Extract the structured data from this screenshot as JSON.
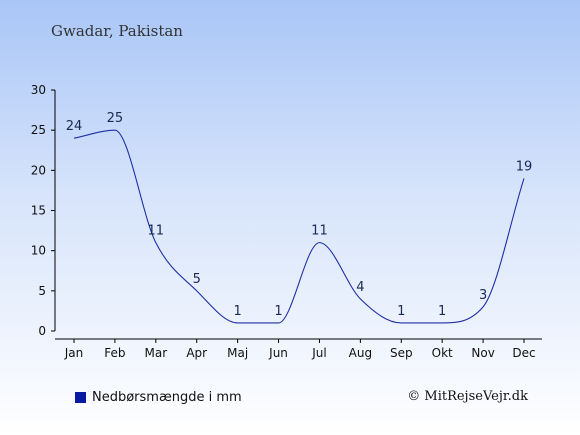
{
  "chart_data": {
    "type": "line",
    "title": "Gwadar, Pakistan",
    "categories": [
      "Jan",
      "Feb",
      "Mar",
      "Apr",
      "Maj",
      "Jun",
      "Jul",
      "Aug",
      "Sep",
      "Okt",
      "Nov",
      "Dec"
    ],
    "series": [
      {
        "name": "Nedbørsmængde i mm",
        "values": [
          24,
          25,
          11,
          5,
          1,
          1,
          11,
          4,
          1,
          1,
          3,
          19
        ]
      }
    ],
    "ylim": [
      0,
      30
    ],
    "yticks": [
      0,
      5,
      10,
      15,
      20,
      25,
      30
    ],
    "xlabel": "",
    "ylabel": "",
    "grid": false,
    "legend": "bottom-left",
    "line_color": "#1f2fa5",
    "legend_color": "#0a1aa0",
    "label_color": "#1a2a55"
  },
  "credit": "© MitRejseVejr.dk"
}
